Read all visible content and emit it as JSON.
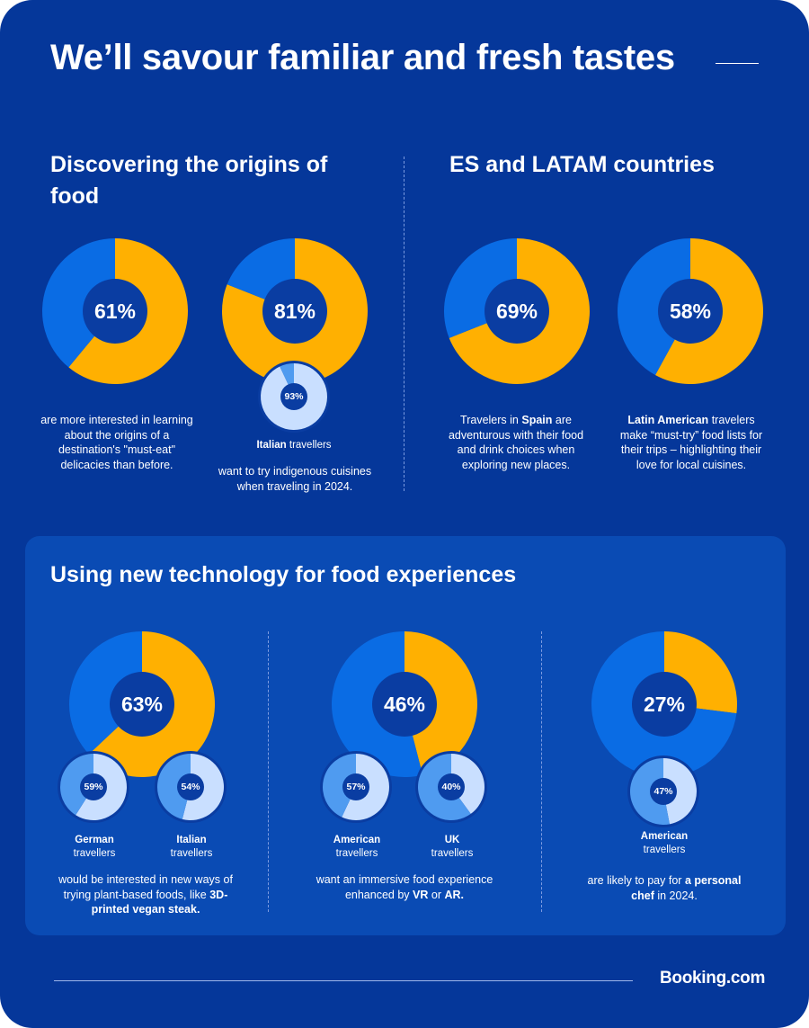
{
  "title": "We’ll savour familiar and fresh tastes",
  "logo": "Booking.com",
  "colors": {
    "background": "#05379a",
    "panel": "#0a4bb4",
    "orange": "#ffb001",
    "blue": "#0a6ce4",
    "light": "#c9dfff",
    "mid": "#4f9bf0",
    "center": "#0a3da2"
  },
  "sections": {
    "origins": {
      "title": "Discovering the origins of food",
      "caption_61": "are more interested in learning about the origins of a destination's \"must-eat\" delicacies than before.",
      "sub_93_strong": "Italian",
      "sub_93_rest": "travellers",
      "caption_81": "want to try indigenous cuisines when traveling in 2024."
    },
    "latam": {
      "title": "ES and LATAM countries",
      "caption_69_pre": "Travelers in",
      "caption_69_strong": "Spain",
      "caption_69_post": "are adventurous with their food and drink choices when exploring new places.",
      "caption_58_strong": "Latin American",
      "caption_58_post": "travelers make “must-try” food lists for their trips – highlighting their love for local cuisines."
    },
    "tech": {
      "title": "Using new technology for food experiences",
      "sub_59_strong": "German",
      "sub_59_rest": "travellers",
      "sub_54_strong": "Italian",
      "sub_54_rest": "travellers",
      "caption_63_pre": "would be interested in new ways of trying plant-based foods, like",
      "caption_63_strong": "3D-printed vegan steak.",
      "sub_57_strong": "American",
      "sub_57_rest": "travellers",
      "sub_40_strong": "UK",
      "sub_40_rest": "travellers",
      "caption_46_pre": "want an immersive food experience enhanced by",
      "caption_46_vr": "VR",
      "caption_46_or": "or",
      "caption_46_ar": "AR.",
      "sub_47_strong": "American",
      "sub_47_rest": "travellers",
      "caption_27_pre": "are likely to pay for",
      "caption_27_strong": "a personal chef",
      "caption_27_post": "in 2024."
    }
  },
  "chart_data": [
    {
      "type": "pie",
      "id": "d61",
      "label": "61%",
      "values": [
        61,
        39
      ]
    },
    {
      "type": "pie",
      "id": "d81",
      "label": "81%",
      "values": [
        81,
        19
      ]
    },
    {
      "type": "pie",
      "id": "d93",
      "label": "93%",
      "values": [
        93,
        7
      ]
    },
    {
      "type": "pie",
      "id": "d69",
      "label": "69%",
      "values": [
        69,
        31
      ]
    },
    {
      "type": "pie",
      "id": "d58",
      "label": "58%",
      "values": [
        58,
        42
      ]
    },
    {
      "type": "pie",
      "id": "d63",
      "label": "63%",
      "values": [
        63,
        37
      ]
    },
    {
      "type": "pie",
      "id": "d59",
      "label": "59%",
      "values": [
        59,
        41
      ]
    },
    {
      "type": "pie",
      "id": "d54",
      "label": "54%",
      "values": [
        54,
        46
      ]
    },
    {
      "type": "pie",
      "id": "d46",
      "label": "46%",
      "values": [
        46,
        54
      ]
    },
    {
      "type": "pie",
      "id": "d57",
      "label": "57%",
      "values": [
        57,
        43
      ]
    },
    {
      "type": "pie",
      "id": "d40",
      "label": "40%",
      "values": [
        40,
        60
      ]
    },
    {
      "type": "pie",
      "id": "d27",
      "label": "27%",
      "values": [
        27,
        73
      ]
    },
    {
      "type": "pie",
      "id": "d47",
      "label": "47%",
      "values": [
        47,
        53
      ]
    }
  ]
}
